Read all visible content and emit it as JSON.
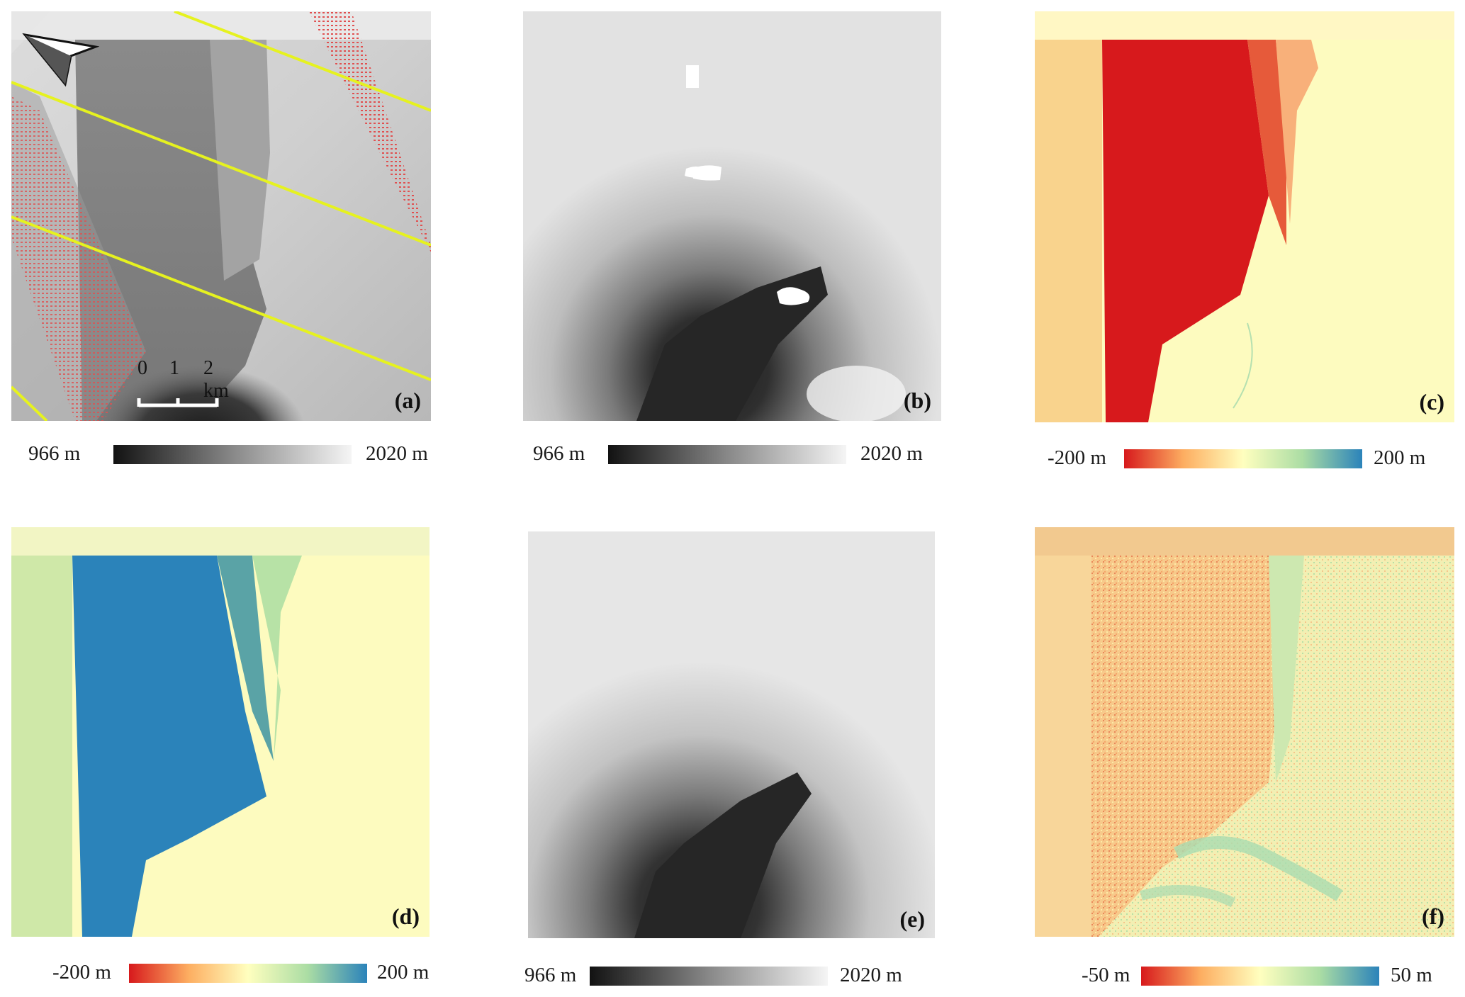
{
  "panels": {
    "a": {
      "label": "(a)"
    },
    "b": {
      "label": "(b)"
    },
    "c": {
      "label": "(c)"
    },
    "d": {
      "label": "(d)"
    },
    "e": {
      "label": "(e)"
    },
    "f": {
      "label": "(f)"
    }
  },
  "scalebar": {
    "t0": "0",
    "t1": "1",
    "t2": "2 km"
  },
  "colorbars": {
    "a": {
      "min": "966 m",
      "max": "2020 m",
      "scheme": "gray"
    },
    "b": {
      "min": "966 m",
      "max": "2020 m",
      "scheme": "gray"
    },
    "c": {
      "min": "-200 m",
      "max": "200 m",
      "scheme": "diverging"
    },
    "d": {
      "min": "-200 m",
      "max": "200 m",
      "scheme": "diverging"
    },
    "e": {
      "min": "966 m",
      "max": "2020 m",
      "scheme": "gray"
    },
    "f": {
      "min": "-50 m",
      "max": "50 m",
      "scheme": "diverging"
    }
  },
  "colors": {
    "track_line": "#e6f21f",
    "footprint": "#e05050",
    "diverging_low": "#d7191c",
    "diverging_mid": "#ffffbf",
    "diverging_high": "#2b83ba"
  },
  "icons": {
    "north_arrow": "north-arrow-icon"
  }
}
